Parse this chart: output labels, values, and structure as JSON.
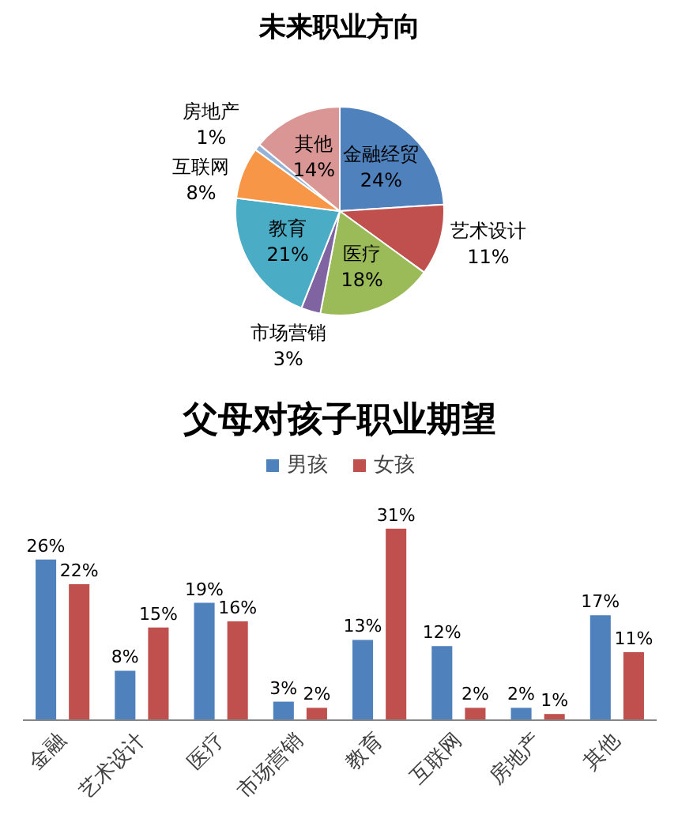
{
  "chart_data": [
    {
      "type": "pie",
      "title": "未来职业方向",
      "categories": [
        "金融经贸",
        "艺术设计",
        "医疗",
        "市场营销",
        "教育",
        "互联网",
        "房地产",
        "其他"
      ],
      "values": [
        24,
        11,
        18,
        3,
        21,
        8,
        1,
        14
      ],
      "colors": [
        "#4f81bd",
        "#c0504d",
        "#9bbb59",
        "#8064a2",
        "#4bacc6",
        "#f79646",
        "#95b3d7",
        "#d99694"
      ],
      "value_labels": [
        "24%",
        "11%",
        "18%",
        "3%",
        "21%",
        "8%",
        "1%",
        "14%"
      ]
    },
    {
      "type": "bar",
      "title": "父母对孩子职业期望",
      "categories": [
        "金融",
        "艺术设计",
        "医疗",
        "市场营销",
        "教育",
        "互联网",
        "房地产",
        "其他"
      ],
      "series": [
        {
          "name": "男孩",
          "color": "#4f81bd",
          "values": [
            26,
            8,
            19,
            3,
            13,
            12,
            2,
            17
          ],
          "value_labels": [
            "26%",
            "8%",
            "19%",
            "3%",
            "13%",
            "12%",
            "2%",
            "17%"
          ]
        },
        {
          "name": "女孩",
          "color": "#c0504d",
          "values": [
            22,
            15,
            16,
            2,
            31,
            2,
            1,
            11
          ],
          "value_labels": [
            "22%",
            "15%",
            "16%",
            "2%",
            "31%",
            "2%",
            "1%",
            "11%"
          ]
        }
      ],
      "legend": "top",
      "tick_labels": "x"
    }
  ]
}
